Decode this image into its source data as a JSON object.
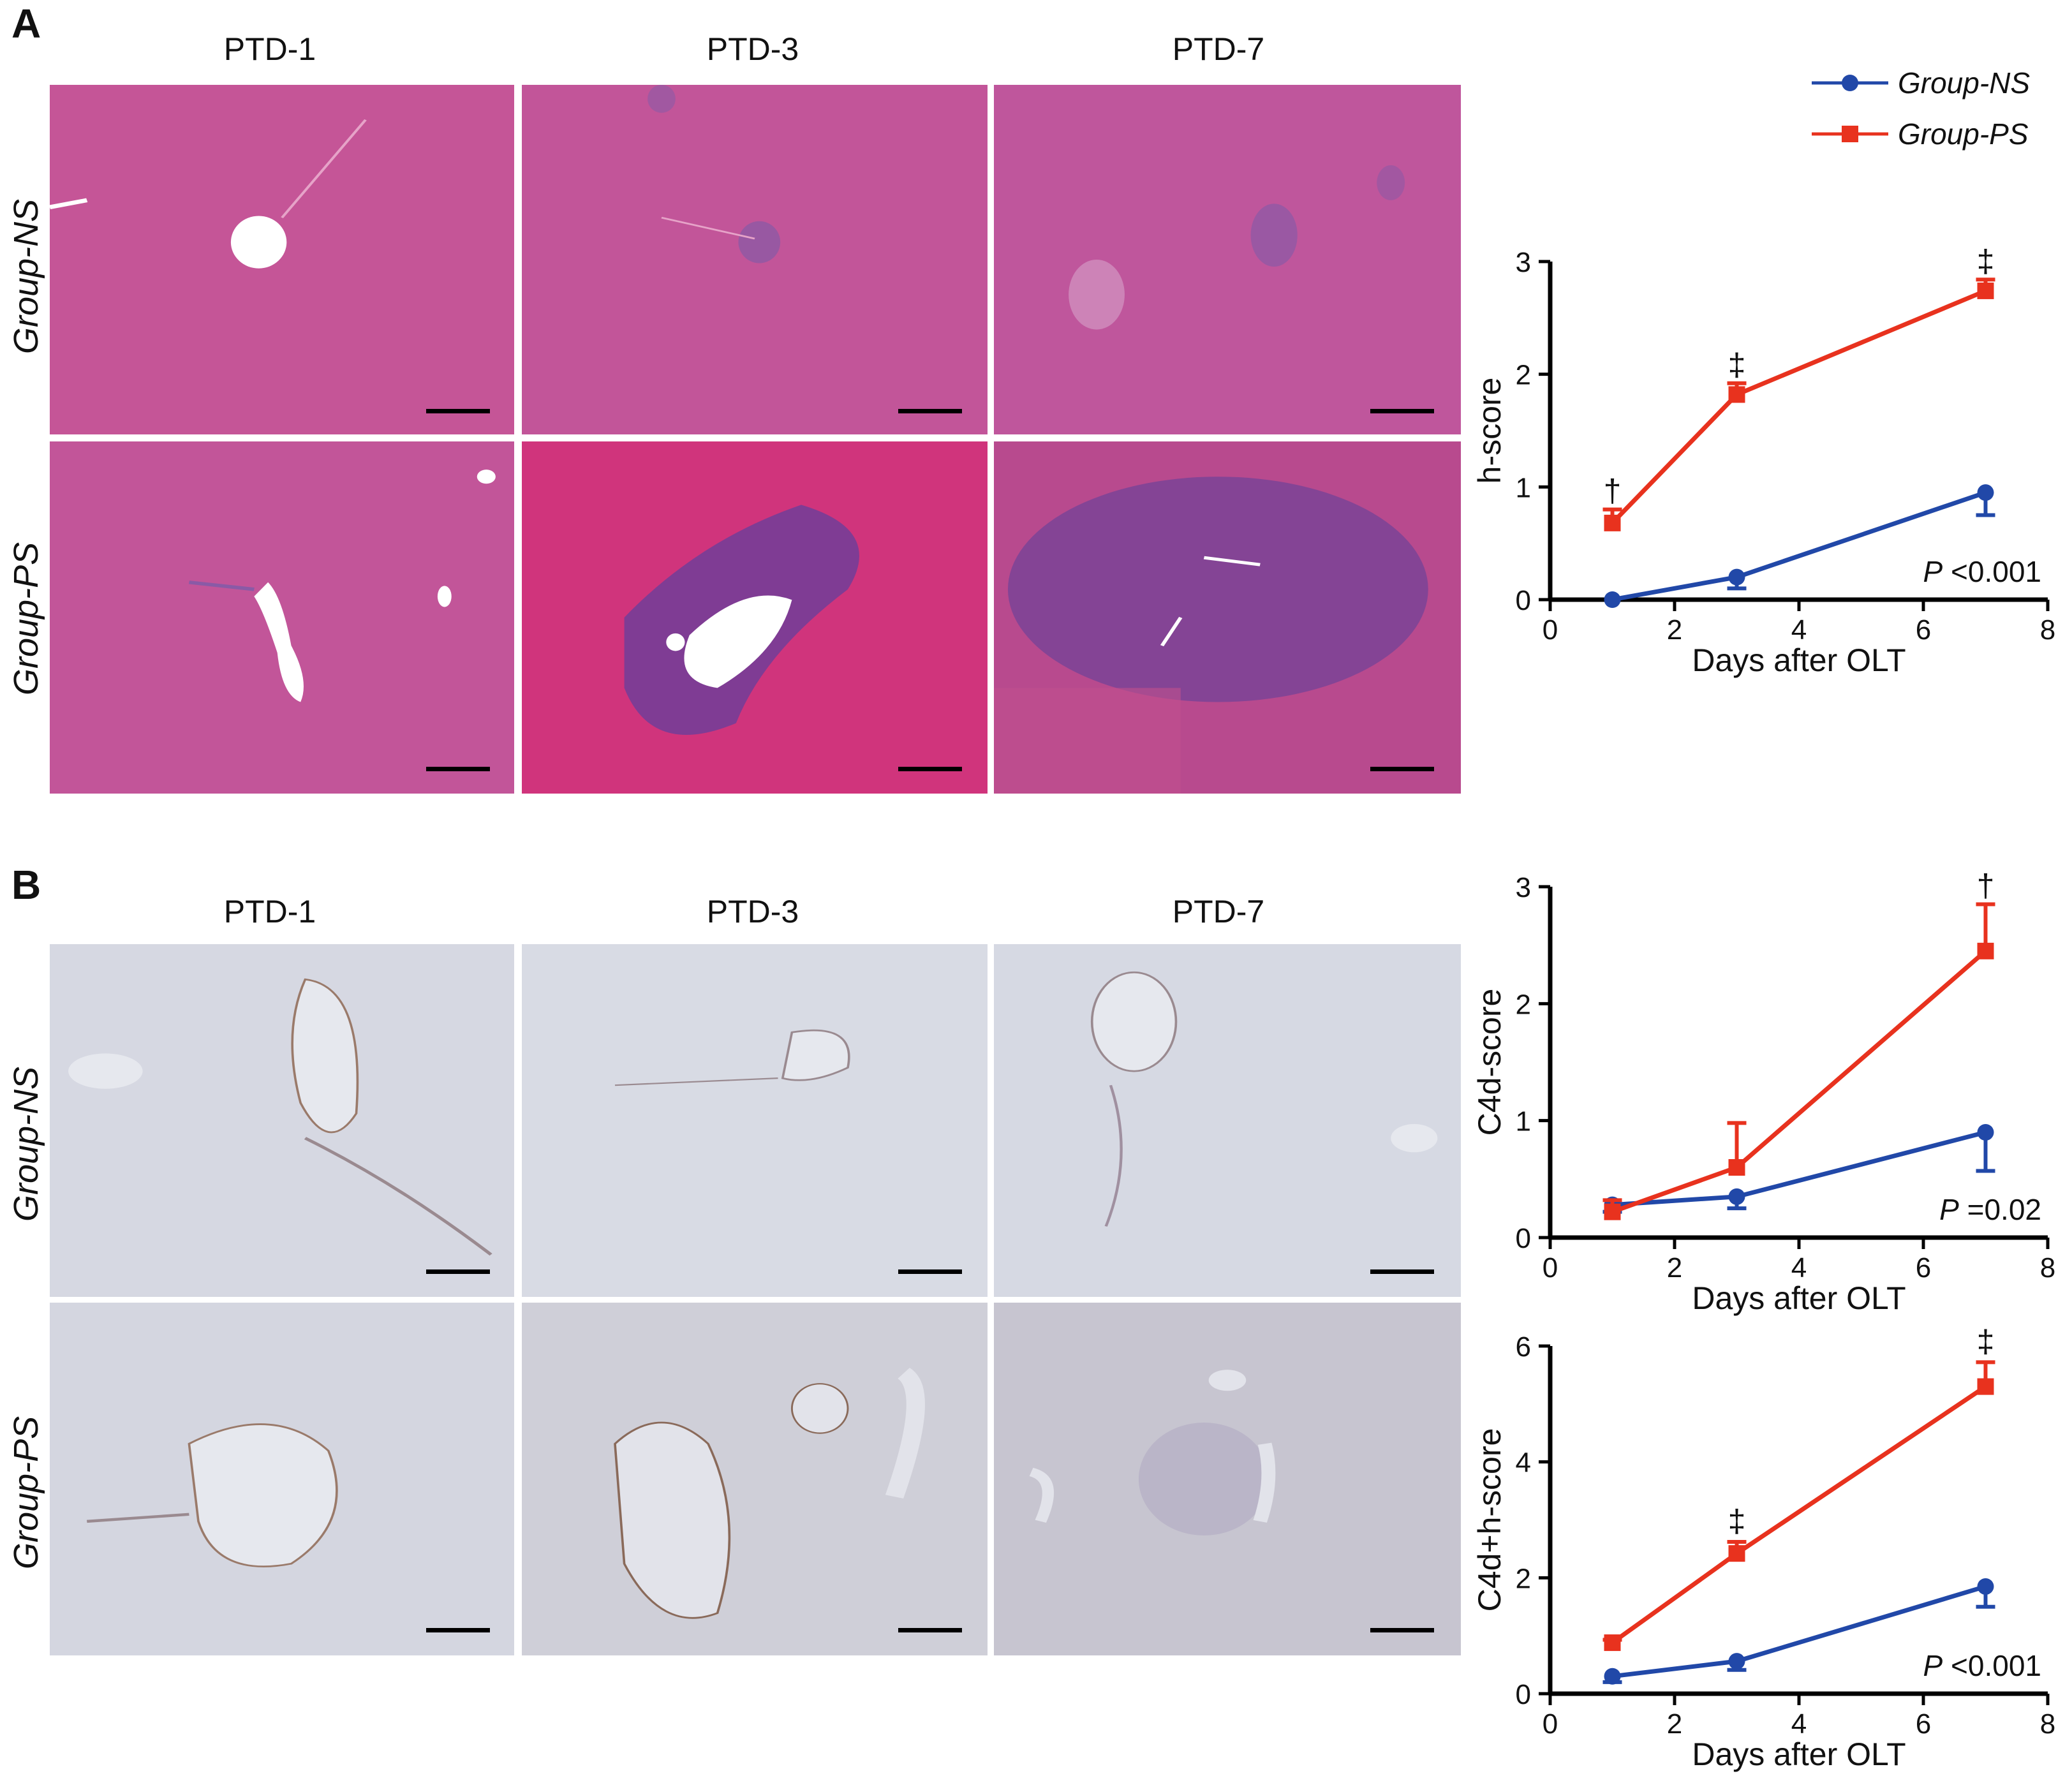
{
  "panel_a": {
    "letter": "A",
    "columns": [
      "PTD-1",
      "PTD-3",
      "PTD-7"
    ],
    "rows": [
      "Group-NS",
      "Group-PS"
    ]
  },
  "panel_b": {
    "letter": "B",
    "columns": [
      "PTD-1",
      "PTD-3",
      "PTD-7"
    ],
    "rows": [
      "Group-NS",
      "Group-PS"
    ]
  },
  "legend": {
    "items": [
      {
        "label": "Group-NS",
        "color": "#2148a8",
        "marker": "circle"
      },
      {
        "label": "Group-PS",
        "color": "#e8321e",
        "marker": "square"
      }
    ]
  },
  "chart_data": [
    {
      "type": "line",
      "ylabel": "h-score",
      "xlabel": "Days after OLT",
      "xlim": [
        0,
        8
      ],
      "ylim": [
        0,
        3
      ],
      "xticks": [
        0,
        2,
        4,
        6,
        8
      ],
      "yticks": [
        0,
        1,
        2,
        3
      ],
      "p_prefix": "P",
      "p_value": "<0.001",
      "series": [
        {
          "name": "Group-NS",
          "x": [
            1,
            3,
            7
          ],
          "y": [
            0.0,
            0.2,
            0.95
          ],
          "err": [
            0.0,
            0.1,
            0.2
          ],
          "err_dir": "down",
          "color": "#2148a8",
          "marker": "circle"
        },
        {
          "name": "Group-PS",
          "x": [
            1,
            3,
            7
          ],
          "y": [
            0.68,
            1.82,
            2.74
          ],
          "err": [
            0.12,
            0.1,
            0.1
          ],
          "err_dir": "up",
          "color": "#e8321e",
          "marker": "square"
        }
      ],
      "annotations": [
        {
          "x": 1,
          "y": 0.8,
          "text": "†"
        },
        {
          "x": 3,
          "y": 1.92,
          "text": "‡"
        },
        {
          "x": 7,
          "y": 2.84,
          "text": "‡"
        }
      ]
    },
    {
      "type": "line",
      "ylabel": "C4d-score",
      "xlabel": "Days after OLT",
      "xlim": [
        0,
        8
      ],
      "ylim": [
        0,
        3
      ],
      "xticks": [
        0,
        2,
        4,
        6,
        8
      ],
      "yticks": [
        0,
        1,
        2,
        3
      ],
      "p_prefix": "P",
      "p_value": "=0.02",
      "series": [
        {
          "name": "Group-NS",
          "x": [
            1,
            3,
            7
          ],
          "y": [
            0.28,
            0.35,
            0.9
          ],
          "err": [
            0.06,
            0.1,
            0.33
          ],
          "err_dir": "down",
          "color": "#2148a8",
          "marker": "circle"
        },
        {
          "name": "Group-PS",
          "x": [
            1,
            3,
            7
          ],
          "y": [
            0.22,
            0.6,
            2.45
          ],
          "err": [
            0.1,
            0.38,
            0.4
          ],
          "err_dir": "up",
          "color": "#e8321e",
          "marker": "square"
        }
      ],
      "annotations": [
        {
          "x": 7,
          "y": 2.85,
          "text": "†"
        }
      ]
    },
    {
      "type": "line",
      "ylabel": "C4d+h-score",
      "xlabel": "Days after OLT",
      "xlim": [
        0,
        8
      ],
      "ylim": [
        0,
        6
      ],
      "xticks": [
        0,
        2,
        4,
        6,
        8
      ],
      "yticks": [
        0,
        2,
        4,
        6
      ],
      "p_prefix": "P",
      "p_value": "<0.001",
      "series": [
        {
          "name": "Group-NS",
          "x": [
            1,
            3,
            7
          ],
          "y": [
            0.3,
            0.56,
            1.85
          ],
          "err": [
            0.1,
            0.15,
            0.35
          ],
          "err_dir": "down",
          "color": "#2148a8",
          "marker": "circle"
        },
        {
          "name": "Group-PS",
          "x": [
            1,
            3,
            7
          ],
          "y": [
            0.88,
            2.42,
            5.3
          ],
          "err": [
            0.05,
            0.2,
            0.42
          ],
          "err_dir": "up",
          "color": "#e8321e",
          "marker": "square"
        }
      ],
      "annotations": [
        {
          "x": 3,
          "y": 2.66,
          "text": "‡"
        },
        {
          "x": 7,
          "y": 5.76,
          "text": "‡"
        }
      ]
    }
  ]
}
